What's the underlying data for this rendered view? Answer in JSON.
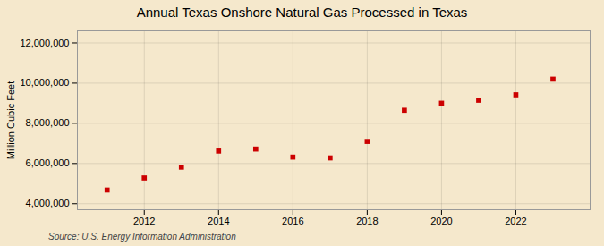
{
  "chart_data": {
    "type": "scatter",
    "title": "Annual Texas Onshore Natural Gas Processed in Texas",
    "ylabel": "Million Cubic Feet",
    "source": "Source: U.S. Energy Information Administration",
    "x": [
      2011,
      2012,
      2013,
      2014,
      2015,
      2016,
      2017,
      2018,
      2019,
      2020,
      2021,
      2022,
      2023
    ],
    "values": [
      4680000,
      5280000,
      5820000,
      6620000,
      6720000,
      6320000,
      6280000,
      7100000,
      8650000,
      9000000,
      9150000,
      9420000,
      10200000
    ],
    "color": "#cc0000",
    "marker": "square",
    "xlim": [
      2010.2,
      2024.0
    ],
    "xticks": [
      2012,
      2014,
      2016,
      2018,
      2020,
      2022
    ],
    "ylim": [
      3700000,
      12600000
    ],
    "yticks": [
      {
        "value": 4000000,
        "label": "4,000,000"
      },
      {
        "value": 6000000,
        "label": "6,000,000"
      },
      {
        "value": 8000000,
        "label": "8,000,000"
      },
      {
        "value": 10000000,
        "label": "10,000,000"
      },
      {
        "value": 12000000,
        "label": "12,000,000"
      }
    ],
    "grid": true
  }
}
